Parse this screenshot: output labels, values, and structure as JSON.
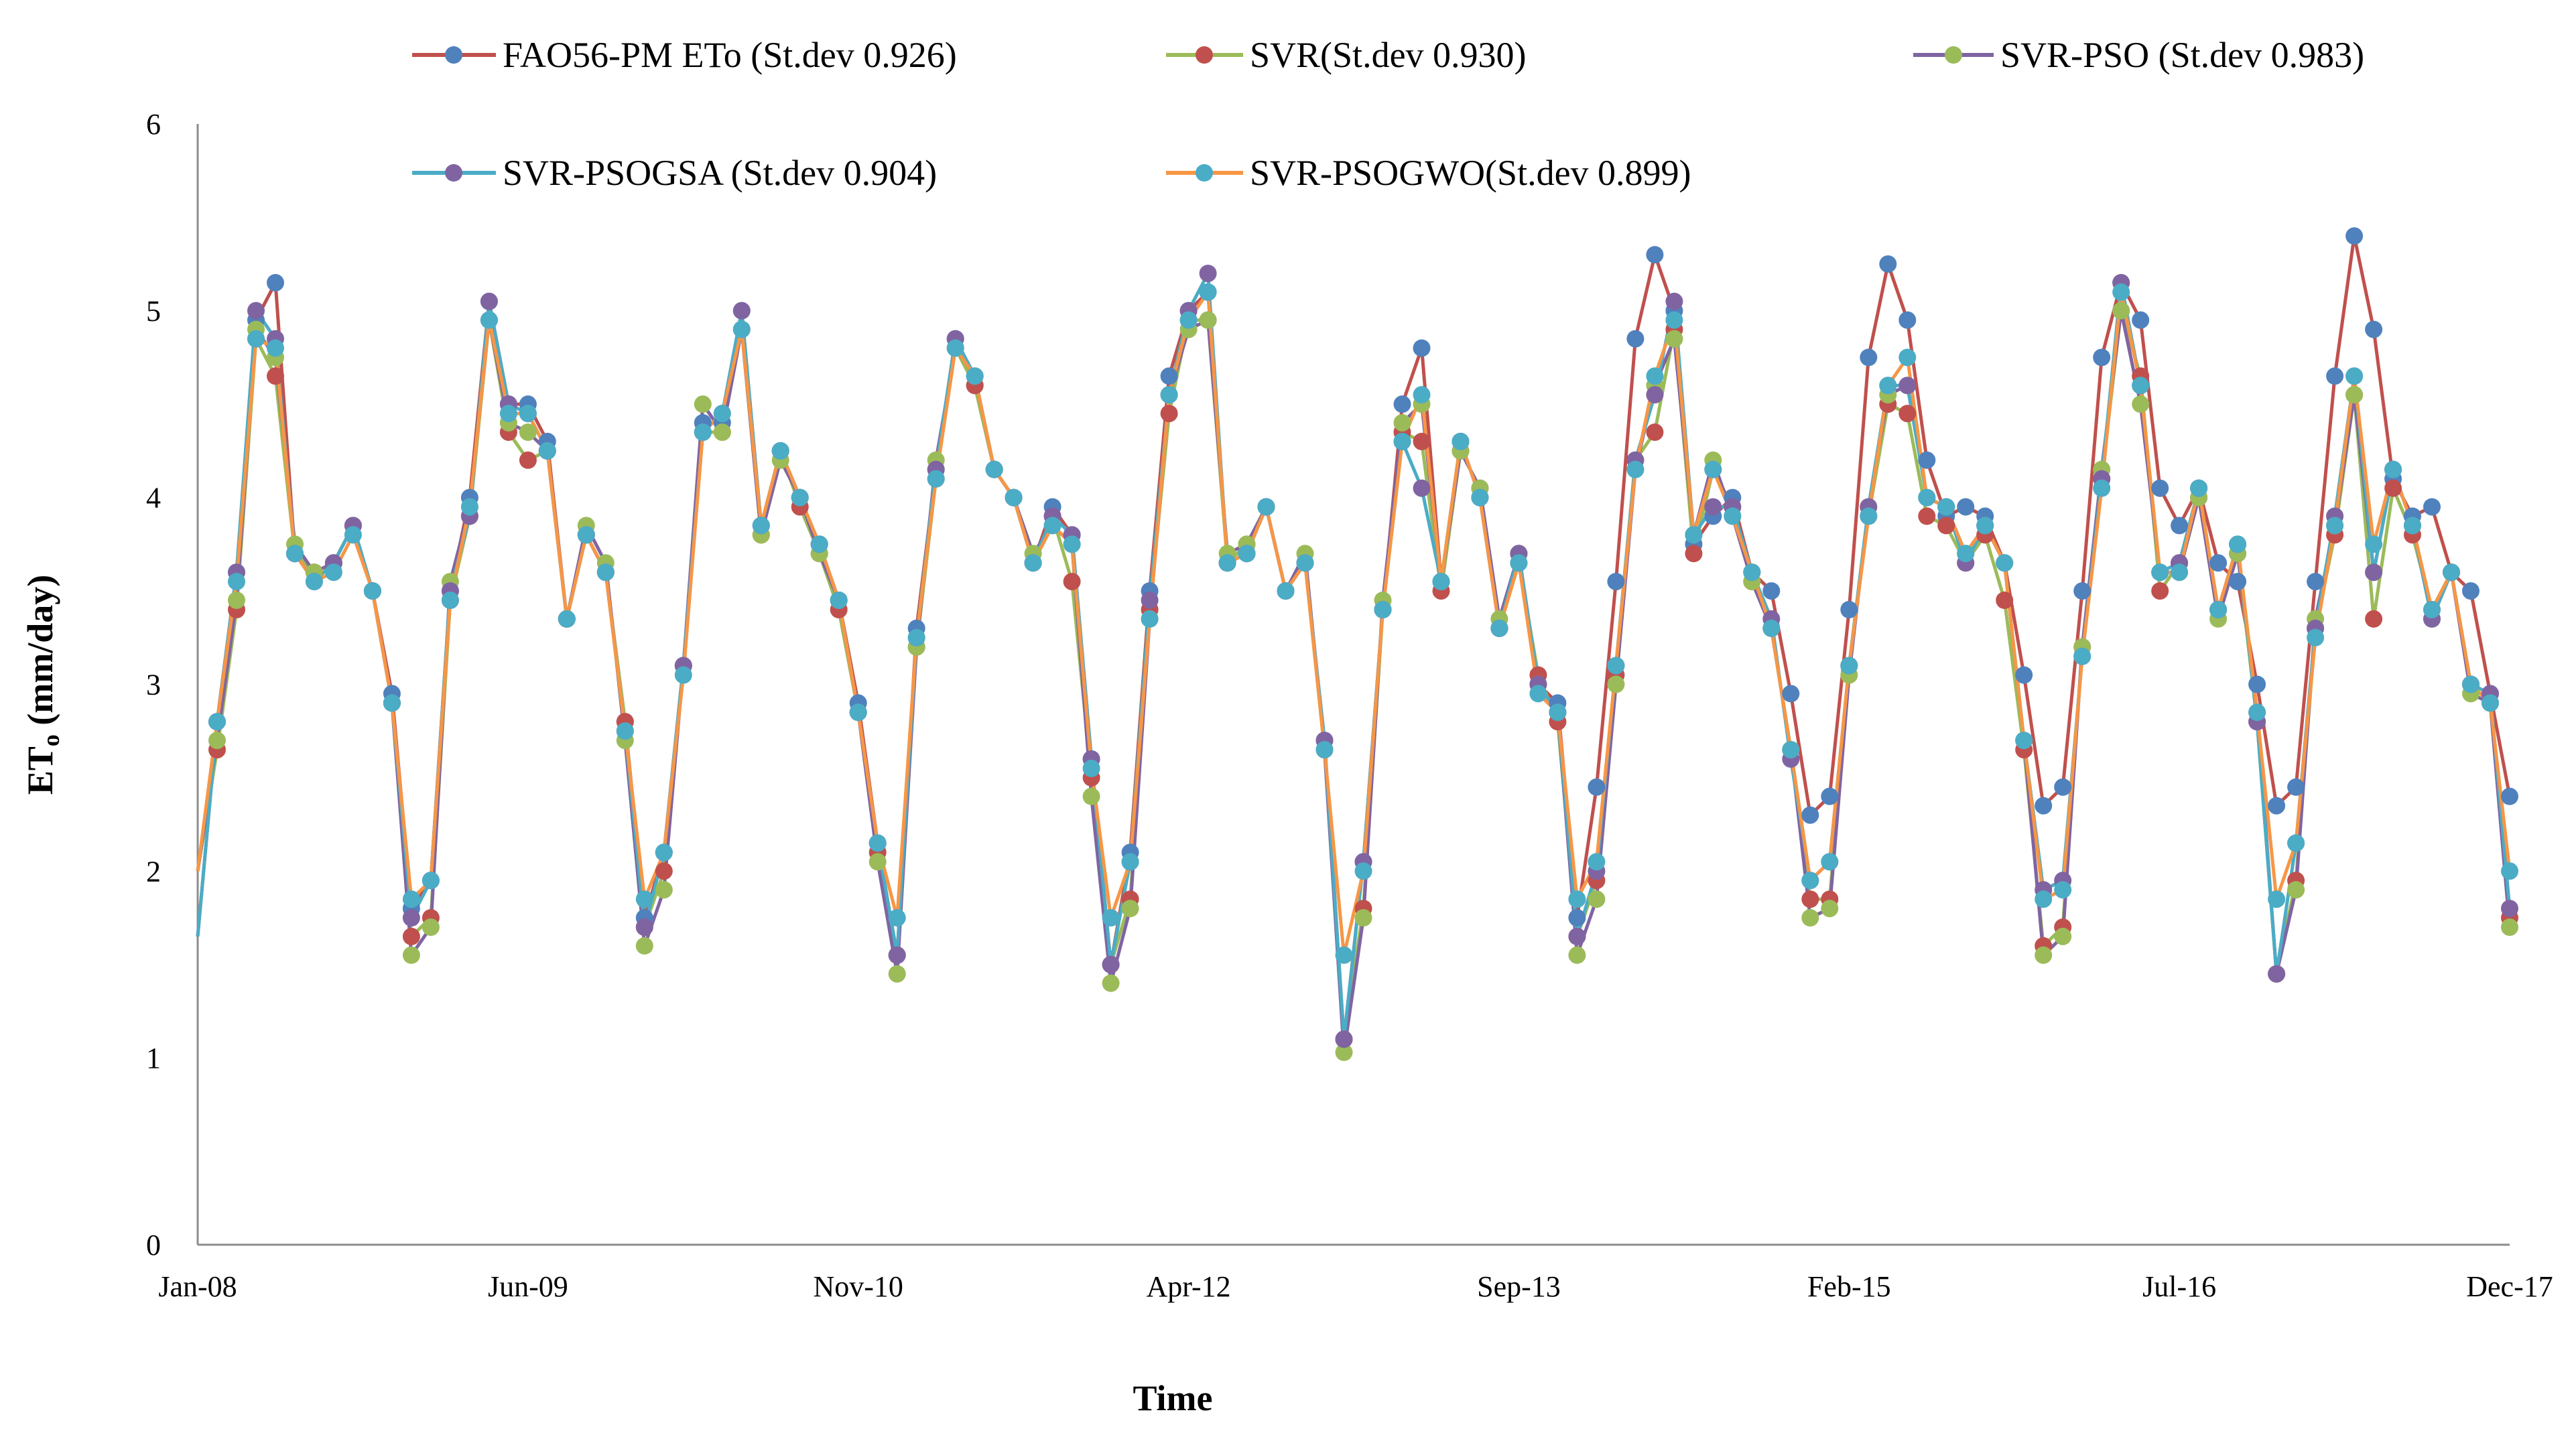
{
  "chart_data": {
    "type": "line",
    "title": "",
    "xlabel": "Time",
    "ylabel": "ET",
    "ylabel_sub": "o",
    "ylabel_unit": " (mm/day)",
    "ylim": [
      0,
      6
    ],
    "yticks": [
      "0",
      "1",
      "2",
      "3",
      "4",
      "5",
      "6"
    ],
    "grid": false,
    "legend_position": "top",
    "x_months": 120,
    "xticks": [
      {
        "label": "Jan-08",
        "index": 0
      },
      {
        "label": "Jun-09",
        "index": 17
      },
      {
        "label": "Nov-10",
        "index": 34
      },
      {
        "label": "Apr-12",
        "index": 51
      },
      {
        "label": "Sep-13",
        "index": 68
      },
      {
        "label": "Feb-15",
        "index": 85
      },
      {
        "label": "Jul-16",
        "index": 102
      },
      {
        "label": "Dec-17",
        "index": 119
      }
    ],
    "series": [
      {
        "name": "FAO56-PM ETo (St.dev 0.926)",
        "line_color": "#c0504d",
        "marker_color": "#4f81bd",
        "values": [
          1.65,
          2.8,
          3.6,
          4.95,
          5.15,
          3.7,
          3.6,
          3.65,
          3.85,
          3.5,
          2.95,
          1.8,
          1.95,
          3.5,
          4.0,
          5.05,
          4.5,
          4.5,
          4.3,
          3.35,
          3.8,
          3.6,
          2.8,
          1.75,
          2.1,
          3.1,
          4.4,
          4.4,
          5.0,
          3.85,
          4.25,
          4.0,
          3.75,
          3.45,
          2.9,
          2.15,
          1.55,
          3.3,
          4.15,
          4.85,
          4.6,
          4.15,
          4.0,
          3.65,
          3.95,
          3.8,
          2.6,
          1.5,
          2.1,
          3.5,
          4.65,
          5.0,
          5.1,
          3.65,
          3.7,
          3.95,
          3.5,
          3.65,
          2.7,
          1.1,
          2.05,
          3.4,
          4.5,
          4.8,
          3.55,
          4.3,
          4.0,
          3.3,
          3.7,
          3.0,
          2.9,
          1.75,
          2.45,
          3.55,
          4.85,
          5.3,
          5.0,
          3.75,
          3.9,
          4.0,
          3.6,
          3.5,
          2.95,
          2.3,
          2.4,
          3.4,
          4.75,
          5.25,
          4.95,
          4.2,
          3.9,
          3.95,
          3.9,
          3.65,
          3.05,
          2.35,
          2.45,
          3.5,
          4.75,
          5.15,
          4.95,
          4.05,
          3.85,
          4.05,
          3.65,
          3.55,
          3.0,
          2.35,
          2.45,
          3.55,
          4.65,
          5.4,
          4.9,
          4.1,
          3.9,
          3.95,
          3.6,
          3.5,
          2.95,
          2.4
        ]
      },
      {
        "name": "SVR(St.dev 0.930)",
        "line_color": "#9bbb59",
        "marker_color": "#c0504d",
        "values": [
          2.0,
          2.65,
          3.4,
          4.85,
          4.65,
          3.7,
          3.6,
          3.65,
          3.85,
          3.5,
          2.9,
          1.65,
          1.75,
          3.45,
          3.9,
          4.95,
          4.35,
          4.2,
          4.25,
          3.35,
          3.8,
          3.6,
          2.8,
          1.7,
          2.0,
          3.1,
          4.35,
          4.35,
          4.9,
          3.8,
          4.25,
          3.95,
          3.7,
          3.4,
          2.85,
          2.1,
          1.55,
          3.2,
          4.1,
          4.8,
          4.6,
          4.15,
          4.0,
          3.65,
          3.9,
          3.55,
          2.5,
          1.5,
          1.85,
          3.4,
          4.45,
          4.95,
          4.95,
          3.65,
          3.75,
          3.95,
          3.5,
          3.65,
          2.65,
          1.1,
          1.8,
          3.4,
          4.35,
          4.3,
          3.5,
          4.25,
          4.05,
          3.3,
          3.65,
          3.05,
          2.8,
          1.65,
          1.95,
          3.05,
          4.2,
          4.35,
          4.9,
          3.7,
          4.15,
          3.95,
          3.55,
          3.3,
          2.65,
          1.85,
          1.85,
          3.1,
          3.9,
          4.5,
          4.45,
          3.9,
          3.85,
          3.65,
          3.8,
          3.45,
          2.65,
          1.6,
          1.7,
          3.2,
          4.1,
          5.0,
          4.65,
          3.5,
          3.65,
          4.0,
          3.4,
          3.7,
          2.8,
          1.45,
          1.95,
          3.3,
          3.8,
          4.55,
          3.35,
          4.05,
          3.8,
          3.4,
          3.6,
          3.0,
          2.9,
          1.75
        ]
      },
      {
        "name": "SVR-PSO (St.dev 0.983)",
        "line_color": "#8064a2",
        "marker_color": "#9bbb59",
        "values": [
          2.0,
          2.7,
          3.45,
          4.9,
          4.75,
          3.75,
          3.6,
          3.65,
          3.85,
          3.5,
          2.9,
          1.55,
          1.7,
          3.55,
          3.95,
          4.95,
          4.4,
          4.35,
          4.25,
          3.35,
          3.85,
          3.65,
          2.7,
          1.6,
          1.9,
          3.1,
          4.5,
          4.35,
          4.9,
          3.8,
          4.2,
          4.0,
          3.7,
          3.45,
          2.85,
          2.05,
          1.45,
          3.2,
          4.2,
          4.8,
          4.65,
          4.15,
          4.0,
          3.7,
          3.85,
          3.75,
          2.4,
          1.4,
          1.8,
          3.35,
          4.55,
          4.9,
          4.95,
          3.7,
          3.75,
          3.95,
          3.5,
          3.7,
          2.65,
          1.03,
          1.75,
          3.45,
          4.4,
          4.5,
          3.55,
          4.25,
          4.05,
          3.35,
          3.7,
          3.0,
          2.85,
          1.55,
          1.85,
          3.0,
          4.15,
          4.6,
          4.85,
          3.8,
          4.2,
          3.9,
          3.55,
          3.3,
          2.65,
          1.75,
          1.8,
          3.05,
          3.95,
          4.55,
          4.6,
          4.0,
          3.95,
          3.7,
          3.85,
          3.65,
          2.7,
          1.55,
          1.65,
          3.2,
          4.15,
          5.0,
          4.5,
          3.6,
          3.6,
          4.0,
          3.35,
          3.7,
          2.85,
          1.45,
          1.9,
          3.35,
          3.85,
          4.55,
          3.6,
          4.15,
          3.85,
          3.35,
          3.6,
          2.95,
          2.9,
          1.7
        ]
      },
      {
        "name": "SVR-PSOGSA (St.dev 0.904)",
        "line_color": "#4bacc6",
        "marker_color": "#8064a2",
        "values": [
          1.65,
          2.8,
          3.6,
          5.0,
          4.85,
          3.7,
          3.55,
          3.65,
          3.85,
          3.5,
          2.9,
          1.75,
          1.95,
          3.5,
          3.9,
          5.05,
          4.5,
          4.45,
          4.25,
          3.35,
          3.8,
          3.6,
          2.75,
          1.7,
          2.1,
          3.1,
          4.35,
          4.45,
          5.0,
          3.85,
          4.25,
          4.0,
          3.75,
          3.45,
          2.85,
          2.15,
          1.55,
          3.25,
          4.15,
          4.85,
          4.65,
          4.15,
          4.0,
          3.65,
          3.9,
          3.8,
          2.6,
          1.5,
          2.05,
          3.45,
          4.55,
          5.0,
          5.2,
          3.65,
          3.7,
          3.95,
          3.5,
          3.65,
          2.7,
          1.1,
          2.05,
          3.4,
          4.3,
          4.05,
          3.55,
          4.3,
          4.0,
          3.3,
          3.7,
          3.0,
          2.85,
          1.65,
          2.0,
          3.1,
          4.2,
          4.55,
          5.05,
          3.8,
          3.95,
          3.95,
          3.6,
          3.35,
          2.6,
          1.95,
          2.05,
          3.1,
          3.95,
          4.6,
          4.6,
          4.0,
          3.95,
          3.65,
          3.85,
          3.65,
          2.7,
          1.9,
          1.95,
          3.15,
          4.1,
          5.15,
          4.6,
          3.6,
          3.65,
          4.05,
          3.4,
          3.75,
          2.8,
          1.45,
          2.15,
          3.3,
          3.9,
          4.65,
          3.6,
          4.15,
          3.85,
          3.35,
          3.6,
          3.0,
          2.95,
          1.8
        ]
      },
      {
        "name": "SVR-PSOGWO(St.dev 0.899)",
        "line_color": "#f79646",
        "marker_color": "#4bacc6",
        "values": [
          2.0,
          2.8,
          3.55,
          4.85,
          4.8,
          3.7,
          3.55,
          3.6,
          3.8,
          3.5,
          2.9,
          1.85,
          1.95,
          3.45,
          3.95,
          4.95,
          4.45,
          4.45,
          4.25,
          3.35,
          3.8,
          3.6,
          2.75,
          1.85,
          2.1,
          3.05,
          4.35,
          4.45,
          4.9,
          3.85,
          4.25,
          4.0,
          3.75,
          3.45,
          2.85,
          2.15,
          1.75,
          3.25,
          4.1,
          4.8,
          4.65,
          4.15,
          4.0,
          3.65,
          3.85,
          3.75,
          2.55,
          1.75,
          2.05,
          3.35,
          4.55,
          4.95,
          5.1,
          3.65,
          3.7,
          3.95,
          3.5,
          3.65,
          2.65,
          1.55,
          2.0,
          3.4,
          4.3,
          4.55,
          3.55,
          4.3,
          4.0,
          3.3,
          3.65,
          2.95,
          2.85,
          1.85,
          2.05,
          3.1,
          4.15,
          4.65,
          4.95,
          3.8,
          4.15,
          3.9,
          3.6,
          3.3,
          2.65,
          1.95,
          2.05,
          3.1,
          3.9,
          4.6,
          4.75,
          4.0,
          3.95,
          3.7,
          3.85,
          3.65,
          2.7,
          1.85,
          1.9,
          3.15,
          4.05,
          5.1,
          4.6,
          3.6,
          3.6,
          4.05,
          3.4,
          3.75,
          2.85,
          1.85,
          2.15,
          3.25,
          3.85,
          4.65,
          3.75,
          4.15,
          3.85,
          3.4,
          3.6,
          3.0,
          2.9,
          2.0
        ]
      }
    ]
  }
}
